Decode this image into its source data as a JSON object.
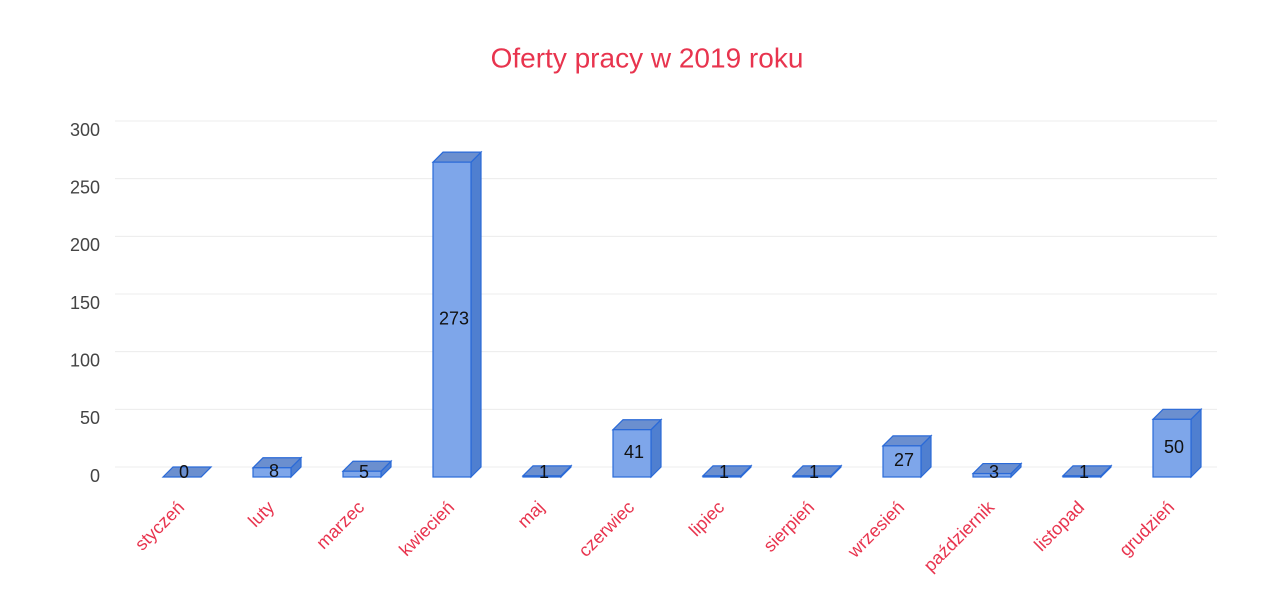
{
  "chart_data": {
    "type": "bar",
    "title": "Oferty pracy w 2019 roku",
    "categories": [
      "styczeń",
      "luty",
      "marzec",
      "kwiecień",
      "maj",
      "czerwiec",
      "lipiec",
      "sierpień",
      "wrzesień",
      "październik",
      "listopad",
      "grudzień"
    ],
    "values": [
      0,
      8,
      5,
      273,
      1,
      41,
      1,
      1,
      27,
      3,
      1,
      50
    ],
    "color": "#7ea6ea",
    "label_color": "#e8344e",
    "ylim": [
      0,
      300
    ],
    "yticks": [
      0,
      50,
      100,
      150,
      200,
      250,
      300
    ],
    "grid": true
  }
}
